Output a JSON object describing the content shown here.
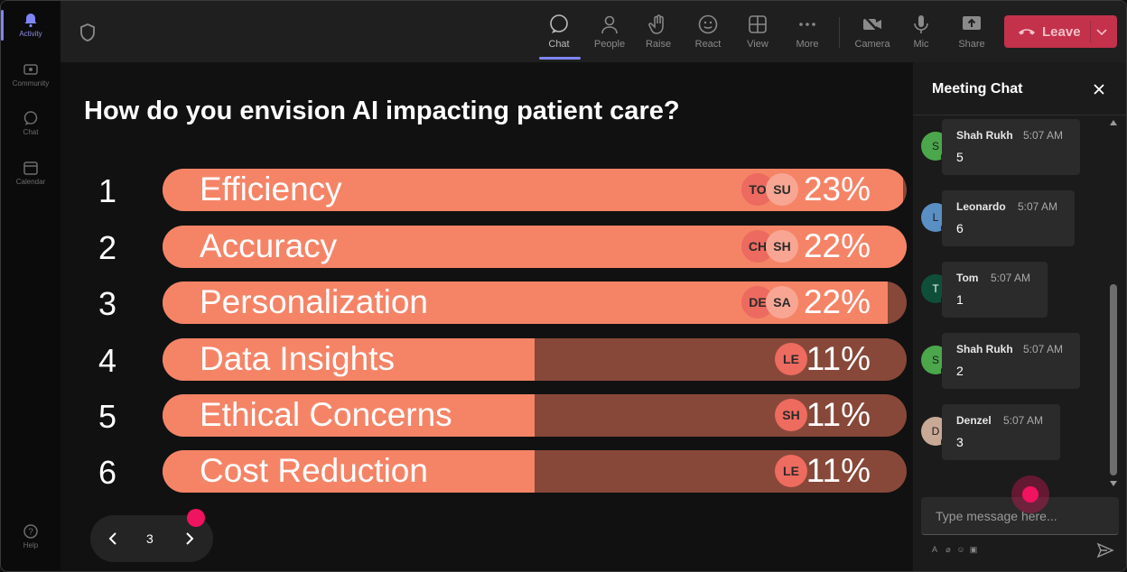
{
  "rail": {
    "items": [
      {
        "label": "Activity",
        "icon": "bell-icon"
      },
      {
        "label": "Community",
        "icon": "community-icon"
      },
      {
        "label": "Chat",
        "icon": "chat-icon"
      },
      {
        "label": "Calendar",
        "icon": "calendar-icon"
      }
    ],
    "help_label": "Help"
  },
  "toolbar": {
    "buttons": [
      {
        "label": "Chat",
        "icon": "chat-icon"
      },
      {
        "label": "People",
        "icon": "people-icon"
      },
      {
        "label": "Raise",
        "icon": "raise-hand-icon"
      },
      {
        "label": "React",
        "icon": "react-icon"
      },
      {
        "label": "View",
        "icon": "view-grid-icon"
      },
      {
        "label": "More",
        "icon": "more-icon"
      },
      {
        "label": "Camera",
        "icon": "camera-off-icon"
      },
      {
        "label": "Mic",
        "icon": "mic-icon"
      },
      {
        "label": "Share",
        "icon": "share-icon"
      }
    ],
    "leave_label": "Leave",
    "leave_color": "#c4314b",
    "accent": "#7f85f5"
  },
  "poll": {
    "question": "How do you envision AI impacting patient care?",
    "bar_color": "#f58467",
    "track_color": "#874839",
    "results": [
      {
        "rank": "1",
        "label": "Efficiency",
        "percent": "23%",
        "fill": 0.995,
        "avatars": [
          "TO",
          "SU"
        ]
      },
      {
        "rank": "2",
        "label": "Accuracy",
        "percent": "22%",
        "fill": 1.0,
        "avatars": [
          "CH",
          "SH"
        ]
      },
      {
        "rank": "3",
        "label": "Personalization",
        "percent": "22%",
        "fill": 0.975,
        "avatars": [
          "DE",
          "SA"
        ]
      },
      {
        "rank": "4",
        "label": "Data Insights",
        "percent": "11%",
        "fill": 0.5,
        "avatars": [
          "LE"
        ]
      },
      {
        "rank": "5",
        "label": "Ethical Concerns",
        "percent": "11%",
        "fill": 0.5,
        "avatars": [
          "SH"
        ]
      },
      {
        "rank": "6",
        "label": "Cost Reduction",
        "percent": "11%",
        "fill": 0.5,
        "avatars": [
          "LE"
        ]
      }
    ],
    "page": "3"
  },
  "chat": {
    "title": "Meeting Chat",
    "placeholder": "Type message here...",
    "messages": [
      {
        "initial": "S",
        "name": "Shah Rukh",
        "time": "5:07 AM",
        "text": "5",
        "color": "#4ca64c"
      },
      {
        "initial": "L",
        "name": "Leonardo",
        "time": "5:07 AM",
        "text": "6",
        "color": "#5a8fc4"
      },
      {
        "initial": "T",
        "name": "Tom",
        "time": "5:07 AM",
        "text": "1",
        "color": "#0f4f3a"
      },
      {
        "initial": "S",
        "name": "Shah Rukh",
        "time": "5:07 AM",
        "text": "2",
        "color": "#4ca64c"
      },
      {
        "initial": "D",
        "name": "Denzel",
        "time": "5:07 AM",
        "text": "3",
        "color": "#c8a996"
      }
    ]
  }
}
